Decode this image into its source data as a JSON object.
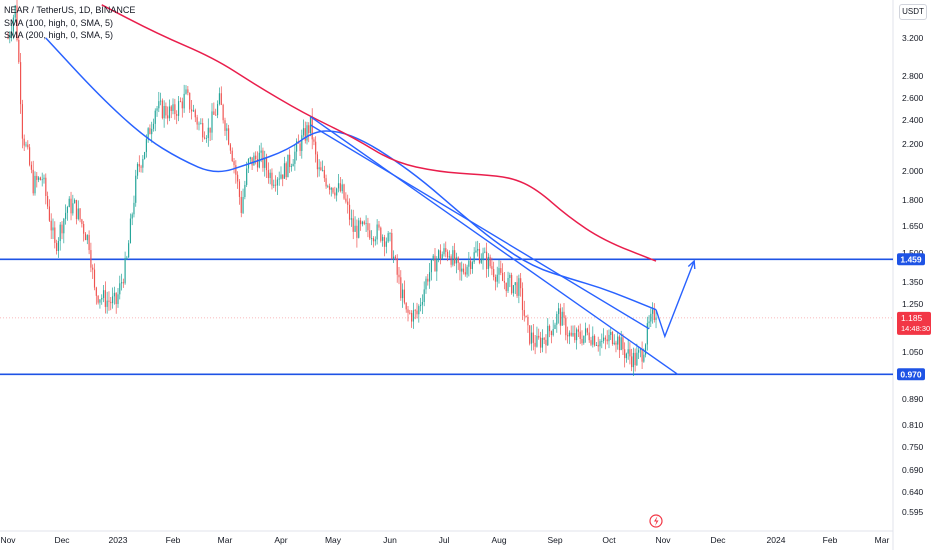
{
  "header": {
    "symbol_line": "NEAR / TetherUS, 1D, BINANCE",
    "sma1_line": "SMA (100, high, 0, SMA, 5)",
    "sma2_line": "SMA (200, high, 0, SMA, 5)"
  },
  "price_scale": {
    "unit_label": "USDT"
  },
  "colors": {
    "up": "#26a69a",
    "down": "#ef5350",
    "sma100": "#2962ff",
    "sma200": "#e91e4c",
    "hline": "#1e53e5",
    "trendline": "#2962ff",
    "last_price_bg": "#f23645",
    "hline_label_bg": "#1e53e5",
    "alert_icon": "#f23645"
  },
  "chart_data": {
    "type": "candlestick",
    "scale": "log",
    "title": "NEAR / TetherUS, 1D, BINANCE",
    "y_ticks": [
      "3.200",
      "2.800",
      "2.600",
      "2.400",
      "2.200",
      "2.000",
      "1.800",
      "1.650",
      "1.500",
      "1.350",
      "1.250",
      "1.050",
      "0.970",
      "0.890",
      "0.810",
      "0.750",
      "0.690",
      "0.640",
      "0.595"
    ],
    "x_ticks": [
      "Nov",
      "Dec",
      "2023",
      "Feb",
      "Mar",
      "Apr",
      "May",
      "Jun",
      "Jul",
      "Aug",
      "Sep",
      "Oct",
      "Nov",
      "Dec",
      "2024",
      "Feb",
      "Mar"
    ],
    "x_tick_dates": [
      "2022-11-01",
      "2022-12-01",
      "2023-01-01",
      "2023-02-01",
      "2023-03-01",
      "2023-04-01",
      "2023-05-01",
      "2023-06-01",
      "2023-07-01",
      "2023-08-01",
      "2023-09-01",
      "2023-10-01",
      "2023-11-01",
      "2023-12-01",
      "2024-01-01",
      "2024-02-01",
      "2024-03-01"
    ],
    "price_anchors": [
      [
        "2022-11-01",
        3.2
      ],
      [
        "2022-11-05",
        3.55
      ],
      [
        "2022-11-09",
        2.3
      ],
      [
        "2022-11-15",
        1.9
      ],
      [
        "2022-11-20",
        1.95
      ],
      [
        "2022-11-27",
        1.52
      ],
      [
        "2022-12-04",
        1.76
      ],
      [
        "2022-12-08",
        1.76
      ],
      [
        "2022-12-16",
        1.55
      ],
      [
        "2022-12-19",
        1.3
      ],
      [
        "2022-12-26",
        1.26
      ],
      [
        "2022-12-31",
        1.25
      ],
      [
        "2023-01-06",
        1.45
      ],
      [
        "2023-01-12",
        2.0
      ],
      [
        "2023-01-17",
        2.2
      ],
      [
        "2023-01-22",
        2.5
      ],
      [
        "2023-02-01",
        2.45
      ],
      [
        "2023-02-08",
        2.6
      ],
      [
        "2023-02-15",
        2.35
      ],
      [
        "2023-02-20",
        2.3
      ],
      [
        "2023-02-26",
        2.55
      ],
      [
        "2023-03-04",
        2.2
      ],
      [
        "2023-03-10",
        1.75
      ],
      [
        "2023-03-14",
        2.05
      ],
      [
        "2023-03-20",
        2.1
      ],
      [
        "2023-03-27",
        1.95
      ],
      [
        "2023-04-03",
        2.0
      ],
      [
        "2023-04-10",
        2.15
      ],
      [
        "2023-04-18",
        2.35
      ],
      [
        "2023-04-22",
        2.0
      ],
      [
        "2023-04-30",
        1.9
      ],
      [
        "2023-05-06",
        1.85
      ],
      [
        "2023-05-12",
        1.62
      ],
      [
        "2023-05-20",
        1.62
      ],
      [
        "2023-05-27",
        1.6
      ],
      [
        "2023-06-01",
        1.55
      ],
      [
        "2023-06-05",
        1.38
      ],
      [
        "2023-06-10",
        1.2
      ],
      [
        "2023-06-16",
        1.2
      ],
      [
        "2023-06-22",
        1.38
      ],
      [
        "2023-06-28",
        1.48
      ],
      [
        "2023-07-04",
        1.5
      ],
      [
        "2023-07-10",
        1.38
      ],
      [
        "2023-07-15",
        1.45
      ],
      [
        "2023-07-20",
        1.5
      ],
      [
        "2023-07-25",
        1.45
      ],
      [
        "2023-08-03",
        1.35
      ],
      [
        "2023-08-12",
        1.32
      ],
      [
        "2023-08-17",
        1.12
      ],
      [
        "2023-08-22",
        1.08
      ],
      [
        "2023-08-28",
        1.12
      ],
      [
        "2023-09-03",
        1.2
      ],
      [
        "2023-09-10",
        1.1
      ],
      [
        "2023-09-20",
        1.12
      ],
      [
        "2023-09-28",
        1.08
      ],
      [
        "2023-10-04",
        1.12
      ],
      [
        "2023-10-10",
        1.05
      ],
      [
        "2023-10-16",
        1.02
      ],
      [
        "2023-10-20",
        1.05
      ],
      [
        "2023-10-24",
        1.15
      ],
      [
        "2023-10-28",
        1.22
      ]
    ],
    "series": [
      {
        "name": "SMA (100, high, 0, SMA, 5)",
        "points": [
          [
            "2022-11-22",
            3.2
          ],
          [
            "2022-12-22",
            2.6
          ],
          [
            "2023-01-16",
            2.25
          ],
          [
            "2023-02-05",
            2.08
          ],
          [
            "2023-02-24",
            1.97
          ],
          [
            "2023-03-15",
            2.05
          ],
          [
            "2023-04-05",
            2.15
          ],
          [
            "2023-04-20",
            2.3
          ],
          [
            "2023-05-04",
            2.3
          ],
          [
            "2023-05-18",
            2.22
          ],
          [
            "2023-06-03",
            2.08
          ],
          [
            "2023-06-20",
            1.92
          ],
          [
            "2023-07-10",
            1.72
          ],
          [
            "2023-07-30",
            1.55
          ],
          [
            "2023-08-20",
            1.42
          ],
          [
            "2023-09-10",
            1.36
          ],
          [
            "2023-09-26",
            1.32
          ],
          [
            "2023-10-12",
            1.27
          ],
          [
            "2023-10-28",
            1.22
          ]
        ]
      },
      {
        "name": "SMA (200, high, 0, SMA, 5)",
        "points": [
          [
            "2022-12-23",
            3.6
          ],
          [
            "2023-01-23",
            3.25
          ],
          [
            "2023-02-23",
            2.98
          ],
          [
            "2023-03-17",
            2.72
          ],
          [
            "2023-04-14",
            2.45
          ],
          [
            "2023-05-12",
            2.25
          ],
          [
            "2023-06-03",
            2.06
          ],
          [
            "2023-06-28",
            1.99
          ],
          [
            "2023-07-22",
            1.97
          ],
          [
            "2023-08-08",
            1.95
          ],
          [
            "2023-08-22",
            1.87
          ],
          [
            "2023-09-08",
            1.7
          ],
          [
            "2023-09-28",
            1.56
          ],
          [
            "2023-10-28",
            1.45
          ]
        ]
      }
    ],
    "horizontal_lines": [
      {
        "value": 1.459,
        "label": "1.459"
      },
      {
        "value": 0.97,
        "label": "0.970"
      }
    ],
    "trendlines": [
      {
        "from": [
          "2023-04-18",
          2.42
        ],
        "to": [
          "2023-11-09",
          0.97
        ]
      },
      {
        "from": [
          "2023-04-18",
          2.35
        ],
        "to": [
          "2023-10-24",
          1.14
        ]
      }
    ],
    "projection_path": [
      [
        "2023-10-28",
        1.22
      ],
      [
        "2023-11-02",
        1.11
      ],
      [
        "2023-11-18",
        1.45
      ]
    ],
    "last_price": {
      "value": "1.185",
      "countdown": "14:48:30"
    },
    "grid": false
  }
}
